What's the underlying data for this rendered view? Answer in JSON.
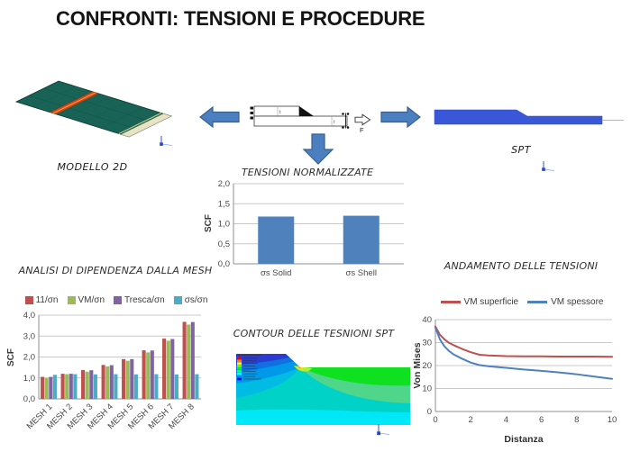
{
  "slide_title": "CONFRONTI: TENSIONI E PROCEDURE",
  "figures": {
    "modello_2d": {
      "label": "MODELLO 2D"
    },
    "spt": {
      "label": "SPT"
    },
    "schematic": {
      "force_label": "F",
      "thickness_label": "t"
    },
    "contour": {
      "title": "CONTOUR DELLE TESNIONI SPT"
    }
  },
  "colors": {
    "arrow_blue": "#4C7FC0",
    "arrow_border": "#36618E",
    "spt_blue": "#3A57D8",
    "plate_teal": "#186355",
    "plate_stripe": "#D2491A",
    "plate_edge": "#E8E3C4",
    "bar_blue": "#4F81BD"
  },
  "chart_data": [
    {
      "id": "tensioni",
      "type": "bar",
      "title": "TENSIONI NORMALIZZATE",
      "ylabel": "SCF",
      "categories": [
        "σs Solid",
        "σs Shell"
      ],
      "values": [
        1.18,
        1.2
      ],
      "bar_color": "#4F81BD",
      "ylim": [
        0,
        2
      ],
      "yticks": [
        0,
        0.5,
        1,
        1.5,
        2
      ],
      "ytick_labels": [
        "0,0",
        "0,5",
        "1,0",
        "1,5",
        "2,0"
      ],
      "grid": true,
      "legend_position": "none"
    },
    {
      "id": "mesh",
      "type": "bar",
      "title": "ANALISI DI DIPENDENZA DALLA MESH",
      "ylabel": "SCF",
      "categories": [
        "MESH 1",
        "MESH 2",
        "MESH 3",
        "MESH 4",
        "MESH 5",
        "MESH 6",
        "MESH 7",
        "MESH 8"
      ],
      "series": [
        {
          "name": "11/σn",
          "color": "#C0504D",
          "values": [
            1.05,
            1.2,
            1.38,
            1.62,
            1.9,
            2.32,
            2.88,
            3.68
          ]
        },
        {
          "name": "VM/σn",
          "color": "#9BBB59",
          "values": [
            1.0,
            1.18,
            1.3,
            1.55,
            1.82,
            2.22,
            2.78,
            3.55
          ]
        },
        {
          "name": "Tresca/σn",
          "color": "#8064A2",
          "values": [
            1.05,
            1.2,
            1.37,
            1.61,
            1.9,
            2.31,
            2.86,
            3.67
          ]
        },
        {
          "name": "σs/σn",
          "color": "#4BACC6",
          "values": [
            1.15,
            1.18,
            1.17,
            1.18,
            1.17,
            1.18,
            1.17,
            1.18
          ]
        }
      ],
      "ylim": [
        0,
        4
      ],
      "yticks": [
        0,
        1,
        2,
        3,
        4
      ],
      "ytick_labels": [
        "0,0",
        "1,0",
        "2,0",
        "3,0",
        "4,0"
      ],
      "grid": true,
      "legend_position": "top"
    },
    {
      "id": "andamento",
      "type": "line",
      "title": "ANDAMENTO DELLE TENSIONI",
      "xlabel": "Distanza",
      "ylabel": "Von Mises",
      "x": [
        0,
        0.25,
        0.5,
        0.75,
        1,
        1.5,
        2,
        2.5,
        3,
        4,
        5,
        6,
        7,
        8,
        9,
        10
      ],
      "series": [
        {
          "name": "VM superficie",
          "color": "#C0504D",
          "values": [
            37,
            33.5,
            31.5,
            30,
            29,
            27.3,
            25.8,
            24.7,
            24.4,
            24.1,
            24,
            24,
            23.9,
            23.9,
            23.9,
            23.8
          ]
        },
        {
          "name": "VM spessore",
          "color": "#4F81BD",
          "values": [
            36.5,
            31.5,
            28.5,
            26.5,
            25,
            23,
            21.3,
            20.2,
            19.7,
            19,
            18.3,
            17.7,
            17,
            16.2,
            15.2,
            14.2
          ]
        }
      ],
      "ylim": [
        0,
        40
      ],
      "yticks": [
        0,
        10,
        20,
        30,
        40
      ],
      "ytick_labels": [
        "0",
        "10",
        "20",
        "30",
        "40"
      ],
      "xlim": [
        0,
        10
      ],
      "xticks": [
        0,
        2,
        4,
        6,
        8,
        10
      ],
      "xtick_labels": [
        "0",
        "2",
        "4",
        "6",
        "8",
        "10"
      ],
      "grid": true,
      "legend_position": "top"
    }
  ]
}
